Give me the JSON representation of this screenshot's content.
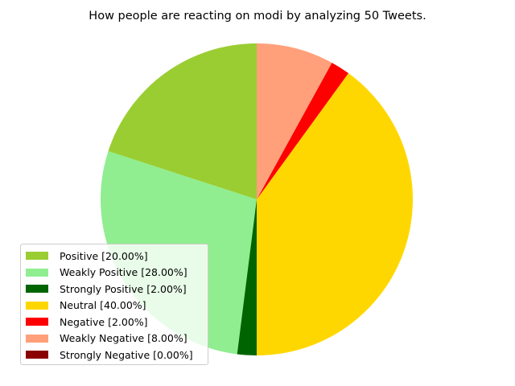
{
  "chart_data": {
    "type": "pie",
    "title": "How people are reacting on modi by analyzing 50 Tweets.",
    "legend_position": "lower-left",
    "slices": [
      {
        "label": "Positive [20.00%]",
        "value": 20,
        "color": "#9ACD32"
      },
      {
        "label": "Weakly Positive [28.00%]",
        "value": 28,
        "color": "#90EE90"
      },
      {
        "label": "Strongly Positive [2.00%]",
        "value": 2,
        "color": "#006400"
      },
      {
        "label": "Neutral [40.00%]",
        "value": 40,
        "color": "#FFD700"
      },
      {
        "label": "Negative [2.00%]",
        "value": 2,
        "color": "#FF0000"
      },
      {
        "label": "Weakly Negative [8.00%]",
        "value": 8,
        "color": "#FFA07A"
      },
      {
        "label": "Strongly Negative [0.00%]",
        "value": 0,
        "color": "#8B0000"
      }
    ]
  }
}
